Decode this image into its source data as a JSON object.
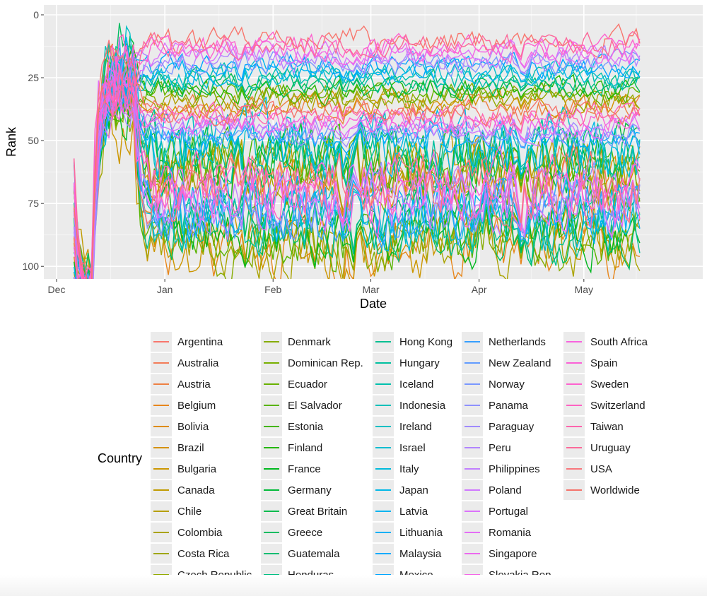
{
  "chart_data": {
    "type": "line",
    "xlabel": "Date",
    "ylabel": "Rank",
    "x_ticks": [
      "Dec",
      "Jan",
      "Feb",
      "Mar",
      "Apr",
      "May"
    ],
    "y_ticks": [
      "0",
      "25",
      "50",
      "75",
      "100"
    ],
    "ylim": [
      0,
      105
    ],
    "y_reversed": true,
    "x_range": [
      "2016-12-01",
      "2017-05-31"
    ],
    "data_range": [
      "2016-12-06",
      "2017-05-17"
    ],
    "grid": true,
    "legend": {
      "title": "Country",
      "position": "bottom",
      "columns": 5
    },
    "series": [
      {
        "name": "Argentina",
        "color": "#F8766D"
      },
      {
        "name": "Australia",
        "color": "#F37C58"
      },
      {
        "name": "Austria",
        "color": "#EE8043"
      },
      {
        "name": "Belgium",
        "color": "#E7861B"
      },
      {
        "name": "Bolivia",
        "color": "#DE8C00"
      },
      {
        "name": "Brazil",
        "color": "#D59100"
      },
      {
        "name": "Bulgaria",
        "color": "#CC9600"
      },
      {
        "name": "Canada",
        "color": "#C09B00"
      },
      {
        "name": "Chile",
        "color": "#B69F00"
      },
      {
        "name": "Colombia",
        "color": "#AAA300"
      },
      {
        "name": "Costa Rica",
        "color": "#9FA600"
      },
      {
        "name": "Czech Republic",
        "color": "#93AA00"
      },
      {
        "name": "Denmark",
        "color": "#86AC00"
      },
      {
        "name": "Dominican Rep.",
        "color": "#78AF00"
      },
      {
        "name": "Ecuador",
        "color": "#68B100"
      },
      {
        "name": "El Salvador",
        "color": "#59B300"
      },
      {
        "name": "Estonia",
        "color": "#44B500"
      },
      {
        "name": "Finland",
        "color": "#24B700"
      },
      {
        "name": "France",
        "color": "#00B81F"
      },
      {
        "name": "Germany",
        "color": "#00BA38"
      },
      {
        "name": "Great Britain",
        "color": "#00BB4E"
      },
      {
        "name": "Greece",
        "color": "#00BC61"
      },
      {
        "name": "Guatemala",
        "color": "#00BD72"
      },
      {
        "name": "Honduras",
        "color": "#00BE82"
      },
      {
        "name": "Hong Kong",
        "color": "#00BF91"
      },
      {
        "name": "Hungary",
        "color": "#00C09F"
      },
      {
        "name": "Iceland",
        "color": "#00C0AD"
      },
      {
        "name": "Indonesia",
        "color": "#00C0BA"
      },
      {
        "name": "Ireland",
        "color": "#00BFC4"
      },
      {
        "name": "Israel",
        "color": "#00BDD0"
      },
      {
        "name": "Italy",
        "color": "#00BBDC"
      },
      {
        "name": "Japan",
        "color": "#00B8E7"
      },
      {
        "name": "Latvia",
        "color": "#00B4F0"
      },
      {
        "name": "Lithuania",
        "color": "#00B0F6"
      },
      {
        "name": "Malaysia",
        "color": "#00ABFD"
      },
      {
        "name": "Mexico",
        "color": "#00A5FF"
      },
      {
        "name": "Netherlands",
        "color": "#359EFF"
      },
      {
        "name": "New Zealand",
        "color": "#619CFF"
      },
      {
        "name": "Norway",
        "color": "#7997FF"
      },
      {
        "name": "Panama",
        "color": "#8E91FF"
      },
      {
        "name": "Paraguay",
        "color": "#9F8AFF"
      },
      {
        "name": "Peru",
        "color": "#B184FF"
      },
      {
        "name": "Philippines",
        "color": "#C17FFF"
      },
      {
        "name": "Poland",
        "color": "#CF78FF"
      },
      {
        "name": "Portugal",
        "color": "#DB72FB"
      },
      {
        "name": "Romania",
        "color": "#E46DF6"
      },
      {
        "name": "Singapore",
        "color": "#EC69EF"
      },
      {
        "name": "Slovakia Rep.",
        "color": "#F365E6"
      },
      {
        "name": "South Africa",
        "color": "#F863DF"
      },
      {
        "name": "Spain",
        "color": "#FB61D7"
      },
      {
        "name": "Sweden",
        "color": "#FE61CF"
      },
      {
        "name": "Switzerland",
        "color": "#FF62C2"
      },
      {
        "name": "Taiwan",
        "color": "#FF65AE"
      },
      {
        "name": "Uruguay",
        "color": "#FC6A9A"
      },
      {
        "name": "USA",
        "color": "#F8767D"
      },
      {
        "name": "Worldwide",
        "color": "#F5736B"
      }
    ]
  }
}
